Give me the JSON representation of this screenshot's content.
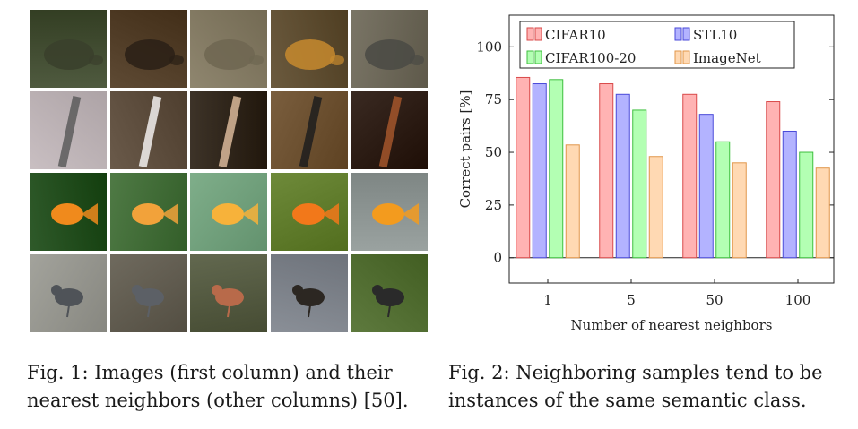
{
  "figure1": {
    "rows": [
      {
        "class_name": "turtle",
        "colors": [
          "#4f5a3f",
          "#5e4a34",
          "#8f866f",
          "#6b5a3e",
          "#7a7566"
        ],
        "accents": [
          "#3a3f2c",
          "#2a2016",
          "#6e6651",
          "#c78a2e",
          "#4a4a44"
        ]
      },
      {
        "class_name": "clarinet",
        "colors": [
          "#c9bfc2",
          "#6a5a4a",
          "#3d3328",
          "#7a5e3e",
          "#3a2a22"
        ],
        "accents": [
          "#5c5c5c",
          "#f2f0ee",
          "#d9b99a",
          "#1d1d1d",
          "#a3562c"
        ]
      },
      {
        "class_name": "goldfish",
        "colors": [
          "#2f5a2a",
          "#4f7a45",
          "#7fae8a",
          "#6e8a3a",
          "#9aa2a0"
        ],
        "accents": [
          "#f08a1c",
          "#f2a23a",
          "#f7b23a",
          "#f2781a",
          "#f39b1e"
        ]
      },
      {
        "class_name": "bird",
        "colors": [
          "#a3a39c",
          "#6f6a5e",
          "#62684f",
          "#8a8f97",
          "#5e7a3e"
        ],
        "accents": [
          "#4f5358",
          "#5c6066",
          "#b86a4a",
          "#2c2722",
          "#2a2a2a"
        ]
      }
    ],
    "caption_lines": [
      "Fig. 1: Images (first column) and their",
      "nearest neighbors (other columns) [50]."
    ]
  },
  "figure2": {
    "caption_lines": [
      "Fig. 2: Neighboring samples tend to be",
      "instances of the same semantic class."
    ]
  },
  "chart_data": {
    "type": "bar",
    "categories": [
      "1",
      "5",
      "50",
      "100"
    ],
    "series": [
      {
        "name": "CIFAR10",
        "values": [
          85.5,
          82.5,
          77.5,
          74
        ],
        "fill": "#ffb3b3",
        "stroke": "#d94a4a"
      },
      {
        "name": "STL10",
        "values": [
          82.5,
          77.5,
          68,
          60
        ],
        "fill": "#b3b3ff",
        "stroke": "#4a4ad9"
      },
      {
        "name": "CIFAR100-20",
        "values": [
          84.5,
          70,
          55,
          50
        ],
        "fill": "#b3ffb3",
        "stroke": "#3fbf3f"
      },
      {
        "name": "ImageNet",
        "values": [
          53.5,
          48,
          45,
          42.5
        ],
        "fill": "#ffd9b3",
        "stroke": "#e0964a"
      }
    ],
    "title": "",
    "xlabel": "Number of nearest neighbors",
    "ylabel": "Correct pairs [%]",
    "yticks": [
      0,
      25,
      50,
      75,
      100
    ],
    "ylim": [
      -12,
      115
    ],
    "legend_placement": "top"
  }
}
